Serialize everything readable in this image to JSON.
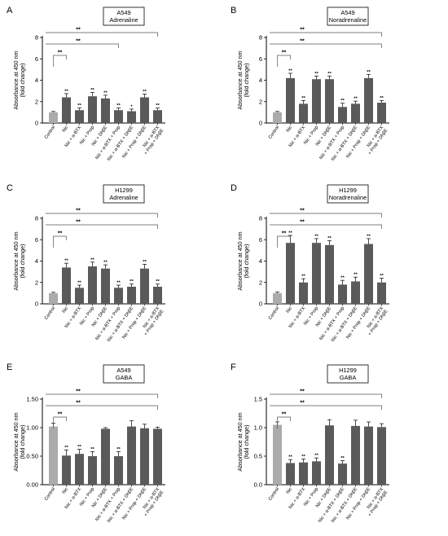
{
  "colors": {
    "control": "#ababab",
    "bar": "#5a5a5a",
    "axis": "#000000",
    "bracket": "#555555"
  },
  "chart_data": [
    {
      "panel": "A",
      "type": "bar",
      "title_lines": [
        "A549",
        "Adrenaline"
      ],
      "ylabel_lines": [
        "Absorbance at 450 nm",
        "(fold change)"
      ],
      "ylim": [
        0,
        8
      ],
      "yticks": [
        0,
        2,
        4,
        6,
        8
      ],
      "ytick_labels": [
        "0",
        "2",
        "4",
        "6",
        "8"
      ],
      "categories": [
        "Control",
        "Nic",
        "Nic + α-BTX",
        "Nic + Prop",
        "Nic + DhβE",
        "Nic + α-BTX + Prop",
        "Nic + α-BTX + DhβE",
        "Nic + Prop + DhβE",
        "Nic + α-BTX\n+ Prop + DhβE"
      ],
      "values": [
        1.0,
        2.4,
        1.2,
        2.5,
        2.3,
        1.2,
        1.1,
        2.4,
        1.2
      ],
      "errors": [
        0.08,
        0.35,
        0.2,
        0.35,
        0.3,
        0.2,
        0.2,
        0.3,
        0.2
      ],
      "bar_labels": [
        "",
        "**",
        "**",
        "**",
        "**",
        "**",
        "*",
        "**",
        "**"
      ],
      "brackets": [
        {
          "from": 0,
          "to": 8,
          "level": 3,
          "label": "**"
        },
        {
          "from": 0,
          "to": 1,
          "level": 1,
          "label": "**"
        },
        {
          "from": 1,
          "to": 5,
          "level": 2,
          "label": "**"
        }
      ]
    },
    {
      "panel": "B",
      "type": "bar",
      "title_lines": [
        "A549",
        "Noradrenaline"
      ],
      "ylabel_lines": [
        "Absorbance at 450 nm",
        "(fold change)"
      ],
      "ylim": [
        0,
        8
      ],
      "yticks": [
        0,
        2,
        4,
        6,
        8
      ],
      "ytick_labels": [
        "0",
        "2",
        "4",
        "6",
        "8"
      ],
      "categories": [
        "Control",
        "Nic",
        "Nic + α-BTX",
        "Nic + Prop",
        "Nic + DhβE",
        "Nic + α-BTX + Prop",
        "Nic + α-BTX + DhβE",
        "Nic + Prop + DhβE",
        "Nic + α-BTX\n+ Prop + DhβE"
      ],
      "values": [
        1.0,
        4.2,
        1.8,
        4.1,
        4.1,
        1.5,
        1.8,
        4.2,
        1.9
      ],
      "errors": [
        0.08,
        0.45,
        0.3,
        0.3,
        0.3,
        0.35,
        0.25,
        0.35,
        0.2
      ],
      "bar_labels": [
        "",
        "**",
        "**",
        "**",
        "**",
        "**",
        "**",
        "**",
        "**"
      ],
      "brackets": [
        {
          "from": 0,
          "to": 8,
          "level": 3,
          "label": "**"
        },
        {
          "from": 0,
          "to": 1,
          "level": 1,
          "label": "**"
        },
        {
          "from": 1,
          "to": 8,
          "level": 2,
          "label": "**"
        }
      ]
    },
    {
      "panel": "C",
      "type": "bar",
      "title_lines": [
        "H1299",
        "Adrenaline"
      ],
      "ylabel_lines": [
        "Absorbance at 450 nm",
        "(fold change)"
      ],
      "ylim": [
        0,
        8
      ],
      "yticks": [
        0,
        2,
        4,
        6,
        8
      ],
      "ytick_labels": [
        "0",
        "2",
        "4",
        "6",
        "8"
      ],
      "categories": [
        "Control",
        "Nic",
        "Nic + α-BTX",
        "Nic + Prop",
        "Nic + DhβE",
        "Nic + α-BTX + Prop",
        "Nic + α-BTX + DhβE",
        "Nic + Prop + DhβE",
        "Nic + α-BTX\n+ Prop + DhβE"
      ],
      "values": [
        1.0,
        3.4,
        1.5,
        3.5,
        3.3,
        1.5,
        1.6,
        3.3,
        1.6
      ],
      "errors": [
        0.08,
        0.4,
        0.25,
        0.4,
        0.35,
        0.25,
        0.25,
        0.4,
        0.25
      ],
      "bar_labels": [
        "",
        "**",
        "**",
        "**",
        "**",
        "**",
        "**",
        "**",
        "**"
      ],
      "brackets": [
        {
          "from": 0,
          "to": 8,
          "level": 3,
          "label": "**"
        },
        {
          "from": 0,
          "to": 1,
          "level": 1,
          "label": "**"
        },
        {
          "from": 1,
          "to": 8,
          "level": 2,
          "label": "**"
        }
      ]
    },
    {
      "panel": "D",
      "type": "bar",
      "title_lines": [
        "H1299",
        "Noradrenaline"
      ],
      "ylabel_lines": [
        "Absorbance at 450 nm",
        "(fold change)"
      ],
      "ylim": [
        0,
        8
      ],
      "yticks": [
        0,
        2,
        4,
        6,
        8
      ],
      "ytick_labels": [
        "0",
        "2",
        "4",
        "6",
        "8"
      ],
      "categories": [
        "Control",
        "Nic",
        "Nic + α-BTX",
        "Nic + Prop",
        "Nic + DhβE",
        "Nic + α-BTX + Prop",
        "Nic + α-BTX + DhβE",
        "Nic + Prop + DhβE",
        "Nic + α-BTX\n+ Prop + DhβE"
      ],
      "values": [
        1.0,
        5.7,
        2.0,
        5.7,
        5.5,
        1.8,
        2.1,
        5.6,
        2.0
      ],
      "errors": [
        0.1,
        0.7,
        0.35,
        0.4,
        0.4,
        0.4,
        0.4,
        0.5,
        0.4
      ],
      "bar_labels": [
        "",
        "**",
        "**",
        "**",
        "**",
        "**",
        "**",
        "**",
        "**"
      ],
      "brackets": [
        {
          "from": 0,
          "to": 8,
          "level": 3,
          "label": "**"
        },
        {
          "from": 0,
          "to": 1,
          "level": 1,
          "label": "**"
        },
        {
          "from": 1,
          "to": 8,
          "level": 2,
          "label": "**"
        }
      ]
    },
    {
      "panel": "E",
      "type": "bar",
      "title_lines": [
        "A549",
        "GABA"
      ],
      "ylabel_lines": [
        "Absorbance at 450 nm",
        "(fold change)"
      ],
      "ylim": [
        0,
        1.5
      ],
      "yticks": [
        0,
        0.5,
        1.0,
        1.5
      ],
      "ytick_labels": [
        "0.00",
        "0.50",
        "1.00",
        "1.50"
      ],
      "categories": [
        "Control",
        "Nic",
        "Nic + α-BTX",
        "Nic + Prop",
        "Nic + DhβE",
        "Nic + α-BTX + Prop",
        "Nic + α-BTX + DhβE",
        "Nic + Prop + DhβE",
        "Nic + α-BTX\n+ Prop + DhβE"
      ],
      "values": [
        1.02,
        0.51,
        0.54,
        0.5,
        0.98,
        0.5,
        1.02,
        0.99,
        0.98
      ],
      "errors": [
        0.06,
        0.1,
        0.08,
        0.08,
        0.02,
        0.08,
        0.1,
        0.07,
        0.03
      ],
      "bar_labels": [
        "",
        "**",
        "**",
        "**",
        "",
        "**",
        "",
        "",
        ""
      ],
      "brackets": [
        {
          "from": 0,
          "to": 8,
          "level": 3,
          "label": "**"
        },
        {
          "from": 0,
          "to": 1,
          "level": 1,
          "label": "**"
        },
        {
          "from": 1,
          "to": 8,
          "level": 2,
          "label": "**"
        }
      ]
    },
    {
      "panel": "F",
      "type": "bar",
      "title_lines": [
        "H1299",
        "GABA"
      ],
      "ylabel_lines": [
        "Absorbance at 450 nm",
        "(fold change)"
      ],
      "ylim": [
        0,
        1.5
      ],
      "yticks": [
        0,
        0.5,
        1.0,
        1.5
      ],
      "ytick_labels": [
        "0.0",
        "0.5",
        "1.0",
        "1.5"
      ],
      "categories": [
        "Control",
        "Nic",
        "Nic + α-BTX",
        "Nic + Prop",
        "Nic + DhβE",
        "Nic + α-BTX + DhβE",
        "Nic + α-BTX + DhβE",
        "Nic + Prop + DhβE",
        "Nic + α-BTX\n+ Prop + DhβE"
      ],
      "values": [
        1.05,
        0.38,
        0.39,
        0.41,
        1.04,
        0.37,
        1.03,
        1.02,
        1.01
      ],
      "errors": [
        0.05,
        0.06,
        0.06,
        0.06,
        0.1,
        0.05,
        0.1,
        0.08,
        0.06
      ],
      "bar_labels": [
        "",
        "**",
        "**",
        "**",
        "",
        "**",
        "",
        "",
        ""
      ],
      "brackets": [
        {
          "from": 0,
          "to": 8,
          "level": 3,
          "label": "**"
        },
        {
          "from": 0,
          "to": 1,
          "level": 1,
          "label": "**"
        },
        {
          "from": 1,
          "to": 8,
          "level": 2,
          "label": "**"
        }
      ]
    }
  ]
}
